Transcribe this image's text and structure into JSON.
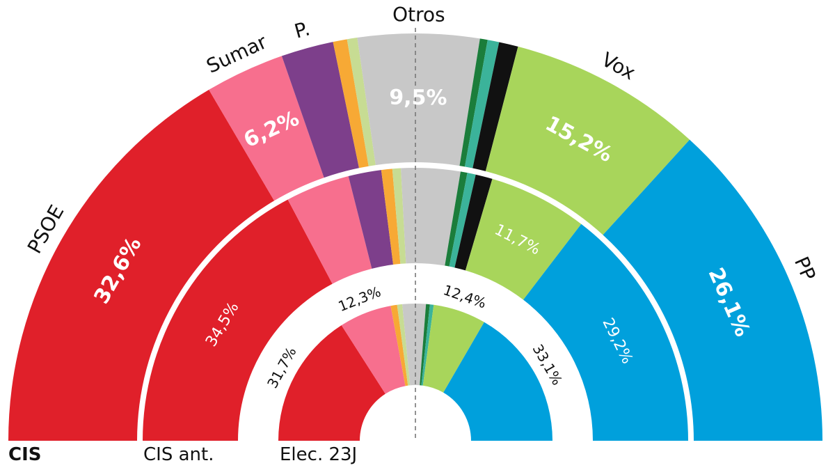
{
  "colors": {
    "psoe": "#e0202a",
    "sumar": "#f76f8e",
    "podemos": "#7d3f8b",
    "orange": "#f7a935",
    "lightgreen": "#c7dc93",
    "otros": "#c8c8c8",
    "darkgreen": "#1b7d3b",
    "teal": "#3bb39a",
    "black": "#111111",
    "vox": "#a8d55b",
    "pp": "#00a0dc"
  },
  "chart_data": {
    "type": "semicircle_donut",
    "rings": [
      {
        "name": "CIS",
        "segments": [
          {
            "party": "PSOE",
            "value": 32.6,
            "label": "32,6%",
            "color_key": "psoe"
          },
          {
            "party": "Sumar",
            "value": 6.2,
            "label": "6,2%",
            "color_key": "sumar"
          },
          {
            "party": "P.",
            "value": 4.1,
            "label": "",
            "color_key": "podemos"
          },
          {
            "party": "",
            "value": 1.1,
            "label": "",
            "color_key": "orange"
          },
          {
            "party": "",
            "value": 0.8,
            "label": "",
            "color_key": "lightgreen"
          },
          {
            "party": "Otros",
            "value": 9.5,
            "label": "9,5%",
            "color_key": "otros"
          },
          {
            "party": "",
            "value": 0.6,
            "label": "",
            "color_key": "darkgreen"
          },
          {
            "party": "",
            "value": 0.9,
            "label": "",
            "color_key": "teal"
          },
          {
            "party": "",
            "value": 1.5,
            "label": "",
            "color_key": "black"
          },
          {
            "party": "Vox",
            "value": 15.2,
            "label": "15,2%",
            "color_key": "vox"
          },
          {
            "party": "PP",
            "value": 26.1,
            "label": "26,1%",
            "color_key": "pp"
          }
        ]
      },
      {
        "name": "CIS ant.",
        "segments": [
          {
            "party": "PSOE",
            "value": 34.5,
            "label": "34,5%",
            "color_key": "psoe"
          },
          {
            "party": "Sumar",
            "value": 7.6,
            "label": "",
            "color_key": "sumar"
          },
          {
            "party": "P.",
            "value": 3.9,
            "label": "",
            "color_key": "podemos"
          },
          {
            "party": "",
            "value": 1.3,
            "label": "",
            "color_key": "orange"
          },
          {
            "party": "",
            "value": 1.0,
            "label": "",
            "color_key": "lightgreen"
          },
          {
            "party": "Otros",
            "value": 7.0,
            "label": "",
            "color_key": "otros"
          },
          {
            "party": "",
            "value": 0.8,
            "label": "",
            "color_key": "darkgreen"
          },
          {
            "party": "",
            "value": 1.0,
            "label": "",
            "color_key": "teal"
          },
          {
            "party": "",
            "value": 2.0,
            "label": "",
            "color_key": "black"
          },
          {
            "party": "Vox",
            "value": 11.7,
            "label": "11,7%",
            "color_key": "vox"
          },
          {
            "party": "PP",
            "value": 29.2,
            "label": "29,2%",
            "color_key": "pp"
          }
        ]
      },
      {
        "name": "Elec. 23J",
        "segments": [
          {
            "party": "PSOE",
            "value": 31.7,
            "label": "31,7%",
            "color_key": "psoe"
          },
          {
            "party": "Sumar",
            "value": 12.3,
            "label": "12,3%",
            "color_key": "sumar"
          },
          {
            "party": "",
            "value": 1.5,
            "label": "",
            "color_key": "orange"
          },
          {
            "party": "",
            "value": 1.2,
            "label": "",
            "color_key": "lightgreen"
          },
          {
            "party": "Otros",
            "value": 5.5,
            "label": "",
            "color_key": "otros"
          },
          {
            "party": "",
            "value": 0.9,
            "label": "",
            "color_key": "darkgreen"
          },
          {
            "party": "",
            "value": 0.9,
            "label": "",
            "color_key": "teal"
          },
          {
            "party": "Vox",
            "value": 12.4,
            "label": "12,4%",
            "color_key": "vox"
          },
          {
            "party": "PP",
            "value": 33.1,
            "label": "33,1%",
            "color_key": "pp"
          }
        ]
      }
    ]
  }
}
